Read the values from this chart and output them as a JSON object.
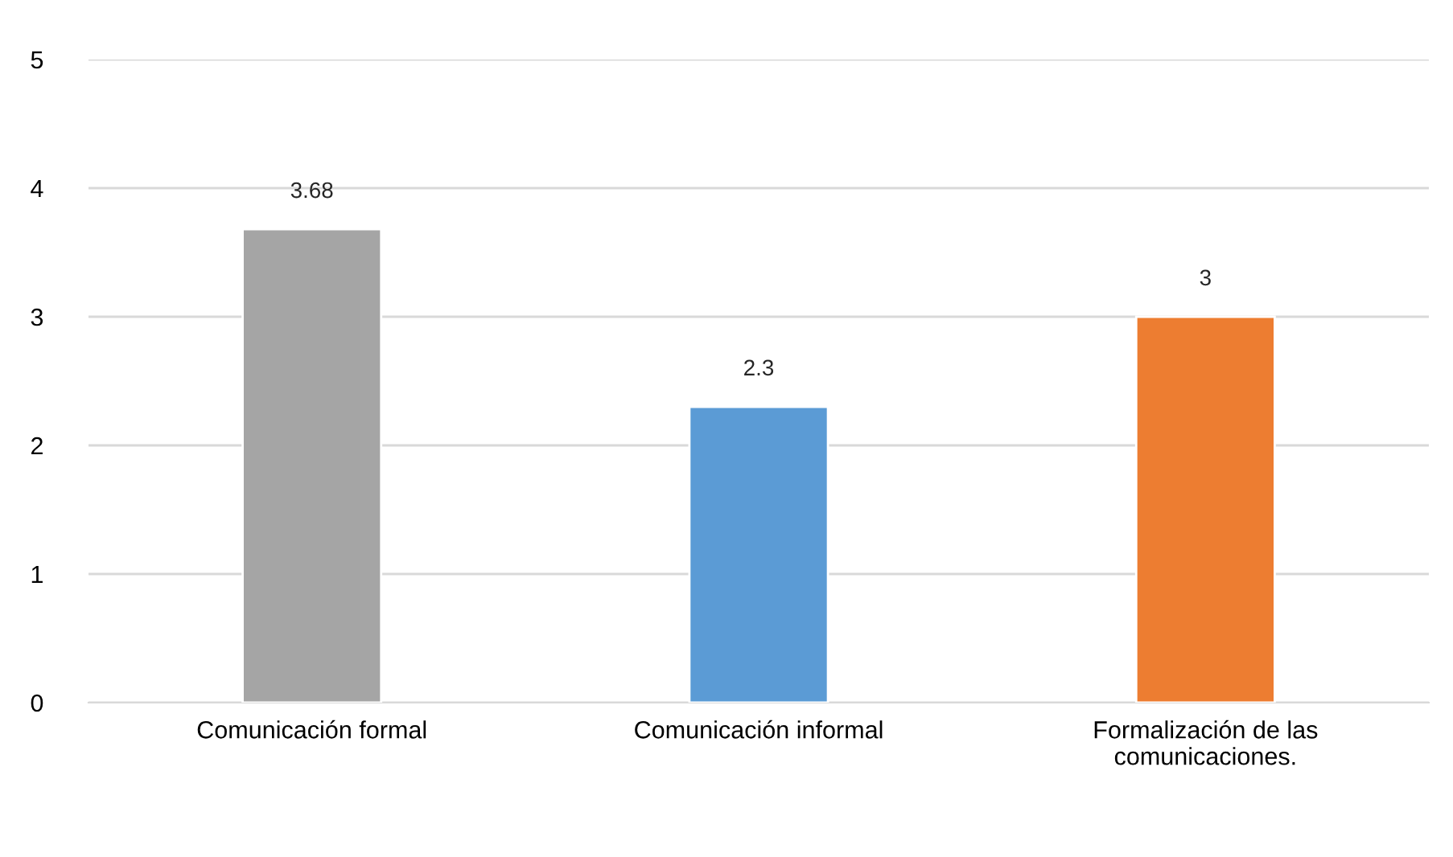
{
  "chart_data": {
    "type": "bar",
    "categories": [
      "Comunicación formal",
      "Comunicación informal",
      "Formalización de las\ncomunicaciones."
    ],
    "values": [
      3.68,
      2.3,
      3
    ],
    "colors": [
      "#a5a5a5",
      "#5b9bd5",
      "#ed7d31"
    ],
    "ylim": [
      0,
      5
    ],
    "yticks": [
      0,
      1,
      2,
      3,
      4,
      5
    ],
    "grid": "y",
    "data_labels": true,
    "legend": false
  }
}
